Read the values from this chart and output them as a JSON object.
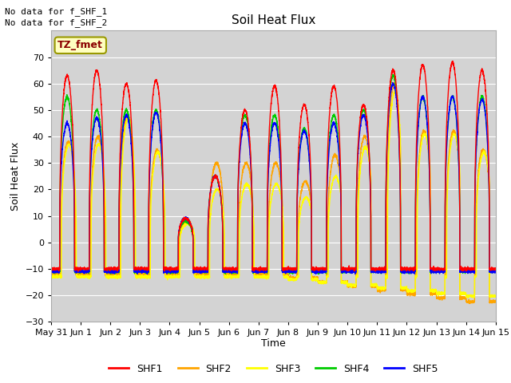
{
  "title": "Soil Heat Flux",
  "ylabel": "Soil Heat Flux",
  "xlabel": "Time",
  "annotation_lines": [
    "No data for f_SHF_1",
    "No data for f_SHF_2"
  ],
  "legend_label": "TZ_fmet",
  "series_labels": [
    "SHF1",
    "SHF2",
    "SHF3",
    "SHF4",
    "SHF5"
  ],
  "series_colors": [
    "#ff0000",
    "#ffa500",
    "#ffff00",
    "#00cc00",
    "#0000ff"
  ],
  "ylim": [
    -30,
    80
  ],
  "yticks": [
    -30,
    -20,
    -10,
    0,
    10,
    20,
    30,
    40,
    50,
    60,
    70
  ],
  "bg_color": "#d3d3d3",
  "fig_color": "#ffffff",
  "n_points": 4320,
  "day_amps_shf1": [
    63,
    65,
    60,
    61,
    9,
    25,
    50,
    59,
    52,
    59,
    52,
    65,
    67,
    68,
    65
  ],
  "day_amps_shf2": [
    38,
    40,
    48,
    35,
    8,
    30,
    30,
    30,
    23,
    33,
    40,
    60,
    42,
    42,
    35
  ],
  "day_amps_shf3": [
    37,
    37,
    47,
    34,
    7,
    20,
    22,
    22,
    17,
    25,
    36,
    57,
    41,
    41,
    34
  ],
  "day_amps_shf4": [
    55,
    50,
    50,
    50,
    8,
    25,
    48,
    48,
    43,
    48,
    50,
    63,
    55,
    55,
    55
  ],
  "day_amps_shf5": [
    45,
    47,
    48,
    49,
    9,
    25,
    45,
    45,
    42,
    45,
    48,
    60,
    55,
    55,
    54
  ],
  "night_depth_shf1": -10,
  "night_depth_shf2": -12,
  "night_depth_shf3": -13,
  "night_depth_shf4": -11,
  "night_depth_shf5": -11,
  "day_start": 0.29,
  "day_end": 0.79,
  "peak_sharpness": 2.5
}
